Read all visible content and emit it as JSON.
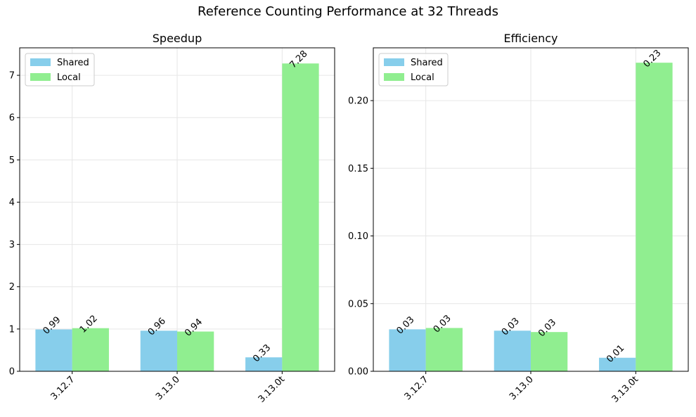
{
  "figure_title": "Reference Counting Performance at 32 Threads",
  "chart_data": [
    {
      "type": "bar",
      "title": "Speedup",
      "xlabel": "",
      "ylabel": "",
      "categories": [
        "3.12.7",
        "3.13.0",
        "3.13.0t"
      ],
      "series": [
        {
          "name": "Shared",
          "values": [
            0.99,
            0.96,
            0.33
          ],
          "labels": [
            "0.99",
            "0.96",
            "0.33"
          ],
          "color": "#87ceeb"
        },
        {
          "name": "Local",
          "values": [
            1.02,
            0.94,
            7.28
          ],
          "labels": [
            "1.02",
            "0.94",
            "7.28"
          ],
          "color": "#90ee90"
        }
      ],
      "ylim": [
        0,
        7.65
      ],
      "yticks": [
        0,
        1,
        2,
        3,
        4,
        5,
        6,
        7
      ],
      "ytick_labels": [
        "0",
        "1",
        "2",
        "3",
        "4",
        "5",
        "6",
        "7"
      ],
      "grid": true,
      "legend": "upper-left"
    },
    {
      "type": "bar",
      "title": "Efficiency",
      "xlabel": "",
      "ylabel": "",
      "categories": [
        "3.12.7",
        "3.13.0",
        "3.13.0t"
      ],
      "series": [
        {
          "name": "Shared",
          "values": [
            0.031,
            0.03,
            0.01
          ],
          "labels": [
            "0.03",
            "0.03",
            "0.01"
          ],
          "color": "#87ceeb"
        },
        {
          "name": "Local",
          "values": [
            0.032,
            0.029,
            0.228
          ],
          "labels": [
            "0.03",
            "0.03",
            "0.23"
          ],
          "color": "#90ee90"
        }
      ],
      "ylim": [
        0,
        0.239
      ],
      "yticks": [
        0,
        0.05,
        0.1,
        0.15,
        0.2
      ],
      "ytick_labels": [
        "0.00",
        "0.05",
        "0.10",
        "0.15",
        "0.20"
      ],
      "grid": true,
      "legend": "upper-left"
    }
  ]
}
